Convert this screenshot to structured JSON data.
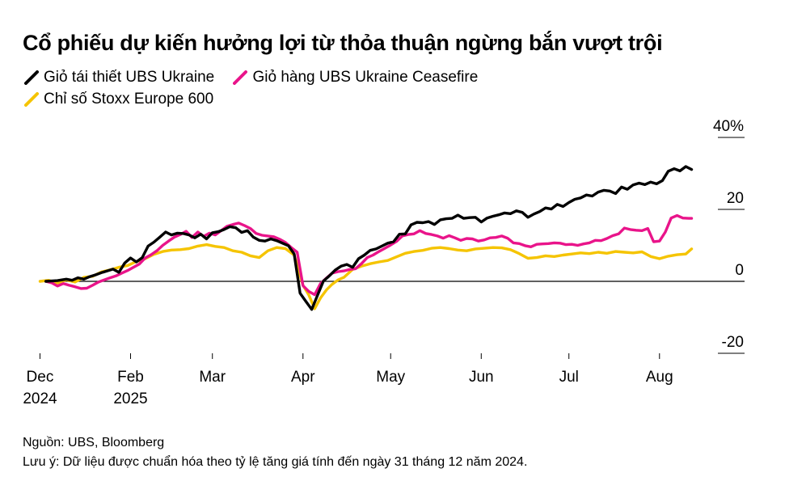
{
  "chart_data": {
    "type": "line",
    "title": "Cổ phiếu dự kiến hưởng lợi từ thỏa thuận ngừng bắn vượt trội",
    "ylabel_unit": "%",
    "ylim": [
      -20,
      40
    ],
    "yticks": [
      {
        "value": 40,
        "label": "40%"
      },
      {
        "value": 20,
        "label": "20"
      },
      {
        "value": 0,
        "label": "0"
      },
      {
        "value": -20,
        "label": "-20"
      }
    ],
    "xlim_days": [
      -4,
      227
    ],
    "xticks": [
      {
        "day": 0,
        "line1": "Dec",
        "line2": "2024"
      },
      {
        "day": 31,
        "line1": "Feb",
        "line2": "2025"
      },
      {
        "day": 59,
        "line1": "Mar",
        "line2": ""
      },
      {
        "day": 90,
        "line1": "Apr",
        "line2": ""
      },
      {
        "day": 120,
        "line1": "May",
        "line2": ""
      },
      {
        "day": 151,
        "line1": "Jun",
        "line2": ""
      },
      {
        "day": 181,
        "line1": "Jul",
        "line2": ""
      },
      {
        "day": 212,
        "line1": "Aug",
        "line2": ""
      }
    ],
    "x_unit": "days since first tick",
    "series": [
      {
        "name": "Giỏ tái thiết UBS Ukraine",
        "color": "#000000",
        "points": [
          [
            2,
            0
          ],
          [
            6,
            0.2
          ],
          [
            9,
            0.6
          ],
          [
            11,
            0.3
          ],
          [
            13,
            1
          ],
          [
            15,
            0.6
          ],
          [
            17,
            1.3
          ],
          [
            19,
            1.8
          ],
          [
            21,
            2.4
          ],
          [
            23,
            2.9
          ],
          [
            25,
            3.4
          ],
          [
            27,
            2.5
          ],
          [
            29,
            5.1
          ],
          [
            31,
            6.5
          ],
          [
            33,
            5.4
          ],
          [
            35,
            6.6
          ],
          [
            37,
            9.8
          ],
          [
            39,
            10.9
          ],
          [
            41,
            12.3
          ],
          [
            43,
            13.7
          ],
          [
            45,
            12.9
          ],
          [
            47,
            13.4
          ],
          [
            49,
            13.3
          ],
          [
            51,
            12.9
          ],
          [
            53,
            12.1
          ],
          [
            55,
            13.1
          ],
          [
            57,
            11.8
          ],
          [
            59,
            13.5
          ],
          [
            61,
            13.8
          ],
          [
            63,
            14.4
          ],
          [
            65,
            15.2
          ],
          [
            67,
            14.9
          ],
          [
            69,
            13.6
          ],
          [
            71,
            14.1
          ],
          [
            73,
            12.3
          ],
          [
            75,
            11.4
          ],
          [
            77,
            11.2
          ],
          [
            79,
            11.8
          ],
          [
            81,
            11.3
          ],
          [
            83,
            10.6
          ],
          [
            85,
            9.9
          ],
          [
            87,
            7.6
          ],
          [
            89,
            -3.3
          ],
          [
            91,
            -5.6
          ],
          [
            93,
            -7.8
          ],
          [
            95,
            -3.8
          ],
          [
            97,
            0.1
          ],
          [
            99,
            1.5
          ],
          [
            101,
            3.1
          ],
          [
            103,
            4.2
          ],
          [
            105,
            4.7
          ],
          [
            107,
            3.9
          ],
          [
            109,
            6.3
          ],
          [
            111,
            7.3
          ],
          [
            113,
            8.6
          ],
          [
            115,
            9.0
          ],
          [
            117,
            9.8
          ],
          [
            119,
            10.6
          ],
          [
            121,
            11.0
          ],
          [
            123,
            13.1
          ],
          [
            125,
            13.2
          ],
          [
            127,
            15.7
          ],
          [
            129,
            16.4
          ],
          [
            131,
            16.3
          ],
          [
            133,
            16.6
          ],
          [
            135,
            15.8
          ],
          [
            137,
            17.1
          ],
          [
            139,
            17.4
          ],
          [
            141,
            17.5
          ],
          [
            143,
            18.4
          ],
          [
            145,
            17.5
          ],
          [
            147,
            17.7
          ],
          [
            149,
            17.8
          ],
          [
            151,
            16.5
          ],
          [
            153,
            17.6
          ],
          [
            155,
            18.1
          ],
          [
            157,
            18.5
          ],
          [
            159,
            19.0
          ],
          [
            161,
            18.8
          ],
          [
            163,
            19.6
          ],
          [
            165,
            19.2
          ],
          [
            167,
            17.8
          ],
          [
            169,
            18.7
          ],
          [
            171,
            19.4
          ],
          [
            173,
            20.4
          ],
          [
            175,
            20.1
          ],
          [
            177,
            21.4
          ],
          [
            179,
            20.8
          ],
          [
            181,
            21.9
          ],
          [
            183,
            22.8
          ],
          [
            185,
            23.2
          ],
          [
            187,
            24.0
          ],
          [
            189,
            23.7
          ],
          [
            191,
            24.8
          ],
          [
            193,
            25.3
          ],
          [
            195,
            25.1
          ],
          [
            197,
            24.4
          ],
          [
            199,
            26.2
          ],
          [
            201,
            25.6
          ],
          [
            203,
            26.8
          ],
          [
            205,
            27.3
          ],
          [
            207,
            26.9
          ],
          [
            209,
            27.6
          ],
          [
            211,
            27.1
          ],
          [
            213,
            28.0
          ],
          [
            215,
            30.6
          ],
          [
            217,
            31.3
          ],
          [
            219,
            30.7
          ],
          [
            221,
            31.9
          ],
          [
            223,
            31.1
          ]
        ]
      },
      {
        "name": "Giỏ hàng UBS Ukraine Ceasefire",
        "color": "#e9148a",
        "points": [
          [
            2,
            0
          ],
          [
            4,
            -0.4
          ],
          [
            6,
            -1.3
          ],
          [
            8,
            -0.6
          ],
          [
            10,
            -1.1
          ],
          [
            12,
            -1.5
          ],
          [
            14,
            -2.0
          ],
          [
            16,
            -1.9
          ],
          [
            18,
            -1.1
          ],
          [
            20,
            -0.2
          ],
          [
            22,
            0.4
          ],
          [
            24,
            1.0
          ],
          [
            26,
            1.5
          ],
          [
            28,
            2.3
          ],
          [
            30,
            3.0
          ],
          [
            32,
            3.9
          ],
          [
            34,
            4.8
          ],
          [
            36,
            6.5
          ],
          [
            38,
            7.4
          ],
          [
            40,
            8.5
          ],
          [
            42,
            10.0
          ],
          [
            44,
            11.2
          ],
          [
            46,
            12.3
          ],
          [
            48,
            13.0
          ],
          [
            50,
            13.9
          ],
          [
            52,
            12.2
          ],
          [
            54,
            13.7
          ],
          [
            56,
            12.5
          ],
          [
            58,
            13.4
          ],
          [
            60,
            12.9
          ],
          [
            62,
            14.1
          ],
          [
            64,
            15.3
          ],
          [
            66,
            15.8
          ],
          [
            68,
            16.2
          ],
          [
            70,
            15.5
          ],
          [
            72,
            14.7
          ],
          [
            74,
            13.3
          ],
          [
            76,
            12.8
          ],
          [
            78,
            12.6
          ],
          [
            80,
            12.4
          ],
          [
            82,
            11.7
          ],
          [
            84,
            10.8
          ],
          [
            86,
            9.4
          ],
          [
            88,
            8.1
          ],
          [
            90,
            -1.2
          ],
          [
            92,
            -2.8
          ],
          [
            94,
            -3.7
          ],
          [
            96,
            -0.6
          ],
          [
            98,
            0.9
          ],
          [
            100,
            2.3
          ],
          [
            102,
            2.7
          ],
          [
            104,
            2.9
          ],
          [
            106,
            3.3
          ],
          [
            108,
            3.5
          ],
          [
            110,
            4.9
          ],
          [
            112,
            6.6
          ],
          [
            114,
            7.3
          ],
          [
            116,
            8.3
          ],
          [
            118,
            9.2
          ],
          [
            120,
            10.1
          ],
          [
            122,
            11.1
          ],
          [
            124,
            12.6
          ],
          [
            126,
            13.0
          ],
          [
            128,
            13.2
          ],
          [
            130,
            14.1
          ],
          [
            132,
            13.3
          ],
          [
            134,
            13.0
          ],
          [
            136,
            12.6
          ],
          [
            138,
            12.0
          ],
          [
            140,
            12.7
          ],
          [
            142,
            12.1
          ],
          [
            144,
            11.4
          ],
          [
            146,
            11.9
          ],
          [
            148,
            11.8
          ],
          [
            150,
            11.2
          ],
          [
            152,
            11.5
          ],
          [
            154,
            12.1
          ],
          [
            156,
            12.2
          ],
          [
            158,
            12.6
          ],
          [
            160,
            12.0
          ],
          [
            162,
            10.7
          ],
          [
            164,
            10.5
          ],
          [
            166,
            9.9
          ],
          [
            168,
            9.6
          ],
          [
            170,
            10.3
          ],
          [
            172,
            10.4
          ],
          [
            174,
            10.5
          ],
          [
            176,
            10.7
          ],
          [
            178,
            10.6
          ],
          [
            180,
            10.2
          ],
          [
            182,
            10.3
          ],
          [
            184,
            10.0
          ],
          [
            186,
            10.4
          ],
          [
            188,
            10.7
          ],
          [
            190,
            11.4
          ],
          [
            192,
            11.3
          ],
          [
            194,
            11.9
          ],
          [
            196,
            12.7
          ],
          [
            198,
            13.2
          ],
          [
            200,
            14.8
          ],
          [
            202,
            14.4
          ],
          [
            204,
            14.2
          ],
          [
            206,
            14.1
          ],
          [
            208,
            14.7
          ],
          [
            210,
            11.0
          ],
          [
            212,
            11.2
          ],
          [
            214,
            13.7
          ],
          [
            216,
            17.6
          ],
          [
            218,
            18.3
          ],
          [
            220,
            17.6
          ],
          [
            222,
            17.5
          ],
          [
            223,
            17.5
          ]
        ]
      },
      {
        "name": "Chỉ số Stoxx Europe 600",
        "color": "#f5c400",
        "points": [
          [
            0,
            0
          ],
          [
            3,
            0.3
          ],
          [
            6,
            -0.5
          ],
          [
            9,
            0.4
          ],
          [
            12,
            -0.2
          ],
          [
            15,
            1.1
          ],
          [
            18,
            1.4
          ],
          [
            21,
            2.6
          ],
          [
            24,
            3.2
          ],
          [
            27,
            3.9
          ],
          [
            30,
            4.4
          ],
          [
            33,
            5.5
          ],
          [
            36,
            6.3
          ],
          [
            39,
            7.5
          ],
          [
            42,
            8.3
          ],
          [
            45,
            8.7
          ],
          [
            48,
            8.8
          ],
          [
            51,
            9.1
          ],
          [
            54,
            9.8
          ],
          [
            57,
            10.2
          ],
          [
            60,
            9.7
          ],
          [
            63,
            9.4
          ],
          [
            66,
            8.5
          ],
          [
            69,
            8.1
          ],
          [
            72,
            7.1
          ],
          [
            75,
            6.6
          ],
          [
            78,
            8.5
          ],
          [
            81,
            9.4
          ],
          [
            84,
            9.1
          ],
          [
            87,
            7.3
          ],
          [
            90,
            -1.1
          ],
          [
            92,
            -3.8
          ],
          [
            94,
            -7.6
          ],
          [
            96,
            -4.6
          ],
          [
            98,
            -2.4
          ],
          [
            100,
            -0.8
          ],
          [
            102,
            0.4
          ],
          [
            104,
            1.1
          ],
          [
            107,
            3.3
          ],
          [
            110,
            4.2
          ],
          [
            113,
            4.9
          ],
          [
            116,
            5.4
          ],
          [
            119,
            5.8
          ],
          [
            122,
            6.8
          ],
          [
            125,
            7.8
          ],
          [
            128,
            8.3
          ],
          [
            131,
            8.6
          ],
          [
            134,
            9.2
          ],
          [
            137,
            9.4
          ],
          [
            140,
            9.1
          ],
          [
            143,
            8.7
          ],
          [
            146,
            8.5
          ],
          [
            149,
            9.0
          ],
          [
            152,
            9.2
          ],
          [
            155,
            9.4
          ],
          [
            158,
            9.3
          ],
          [
            161,
            8.8
          ],
          [
            164,
            7.7
          ],
          [
            167,
            6.4
          ],
          [
            170,
            6.6
          ],
          [
            173,
            7.1
          ],
          [
            176,
            6.9
          ],
          [
            179,
            7.3
          ],
          [
            182,
            7.6
          ],
          [
            185,
            7.9
          ],
          [
            188,
            7.7
          ],
          [
            191,
            8.1
          ],
          [
            194,
            7.8
          ],
          [
            197,
            8.3
          ],
          [
            200,
            8.1
          ],
          [
            203,
            7.9
          ],
          [
            206,
            8.2
          ],
          [
            209,
            6.9
          ],
          [
            212,
            6.3
          ],
          [
            215,
            7.0
          ],
          [
            218,
            7.4
          ],
          [
            221,
            7.6
          ],
          [
            223,
            9.0
          ]
        ]
      }
    ]
  },
  "legend": [
    {
      "label": "Giỏ tái thiết UBS Ukraine",
      "color": "#000000"
    },
    {
      "label": "Giỏ hàng UBS Ukraine Ceasefire",
      "color": "#e9148a"
    },
    {
      "label": "Chỉ số Stoxx Europe 600",
      "color": "#f5c400"
    }
  ],
  "footer": {
    "source": "Nguồn: UBS, Bloomberg",
    "note": "Lưu ý: Dữ liệu được chuẩn hóa theo tỷ lệ tăng giá tính đến ngày 31 tháng 12 năm 2024."
  }
}
